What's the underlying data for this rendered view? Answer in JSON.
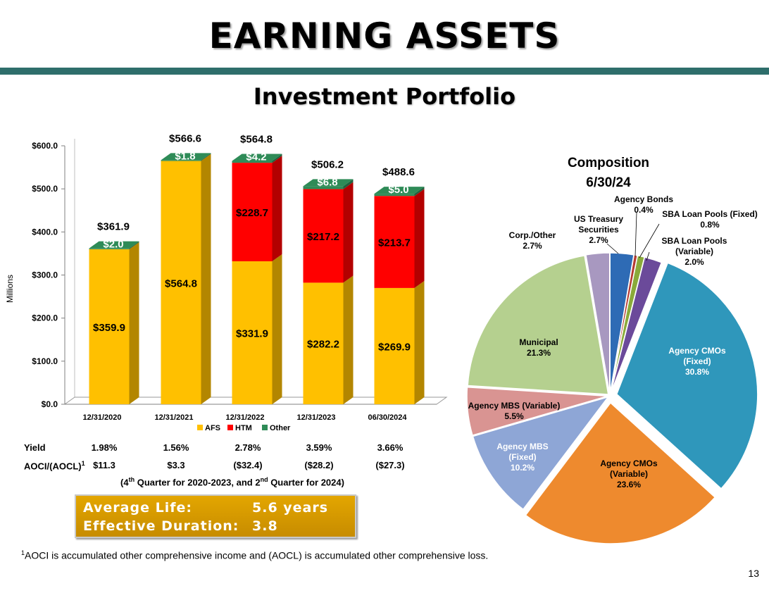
{
  "title": "EARNING ASSETS",
  "subtitle": "Investment Portfolio",
  "colors": {
    "afs": "#ffc000",
    "htm": "#ff0000",
    "other": "#2e8b57",
    "rule": "#2e6e6b"
  },
  "chart_data": [
    {
      "type": "bar",
      "stacked": true,
      "ylabel": "Millions",
      "ylim": [
        0,
        600
      ],
      "yticks": [
        "$0.0",
        "$100.0",
        "$200.0",
        "$300.0",
        "$400.0",
        "$500.0",
        "$600.0"
      ],
      "categories": [
        "12/31/2020",
        "12/31/2021",
        "12/31/2022",
        "12/31/2023",
        "06/30/2024"
      ],
      "series": [
        {
          "name": "AFS",
          "values": [
            359.9,
            564.8,
            331.9,
            282.2,
            269.9
          ],
          "labels": [
            "$359.9",
            "$564.8",
            "$331.9",
            "$282.2",
            "$269.9"
          ]
        },
        {
          "name": "HTM",
          "values": [
            0,
            0,
            228.7,
            217.2,
            213.7
          ],
          "labels": [
            "",
            "",
            "$228.7",
            "$217.2",
            "$213.7"
          ]
        },
        {
          "name": "Other",
          "values": [
            2.0,
            1.8,
            4.2,
            6.8,
            5.0
          ],
          "labels": [
            "$2.0",
            "$1.8",
            "$4.2",
            "$6.8",
            "$5.0"
          ]
        }
      ],
      "totals": [
        361.9,
        566.6,
        564.8,
        506.2,
        488.6
      ],
      "total_labels": [
        "$361.9",
        "$566.6",
        "$564.8",
        "$506.2",
        "$488.6"
      ],
      "legend": [
        "AFS",
        "HTM",
        "Other"
      ],
      "legend_position": "bottom"
    },
    {
      "type": "pie",
      "title": "Composition",
      "subtitle": "6/30/24",
      "slices": [
        {
          "label": "US Treasury Securities",
          "display": "US Treasury\nSecurities\n2.7%",
          "value": 2.7,
          "color": "#2e6bb5"
        },
        {
          "label": "Agency Bonds",
          "display": "Agency Bonds\n0.4%",
          "value": 0.4,
          "color": "#b53a32"
        },
        {
          "label": "SBA Loan Pools (Fixed)",
          "display": "SBA Loan Pools (Fixed)\n0.8%",
          "value": 0.8,
          "color": "#8aaa3a"
        },
        {
          "label": "SBA Loan Pools (Variable)",
          "display": "SBA Loan Pools\n(Variable)\n2.0%",
          "value": 2.0,
          "color": "#6b4a9a"
        },
        {
          "label": "Agency CMOs (Fixed)",
          "display": "Agency CMOs\n(Fixed)\n30.8%",
          "value": 30.8,
          "color": "#2f97bb"
        },
        {
          "label": "Agency CMOs (Variable)",
          "display": "Agency CMOs\n(Variable)\n23.6%",
          "value": 23.6,
          "color": "#ee8a2e"
        },
        {
          "label": "Agency MBS (Fixed)",
          "display": "Agency MBS\n(Fixed)\n10.2%",
          "value": 10.2,
          "color": "#8ea6d6"
        },
        {
          "label": "Agency MBS (Variable)",
          "display": "Agency MBS (Variable)\n5.5%",
          "value": 5.5,
          "color": "#d99492"
        },
        {
          "label": "Municipal",
          "display": "Municipal\n21.3%",
          "value": 21.3,
          "color": "#b5d08f"
        },
        {
          "label": "Corp./Other",
          "display": "Corp./Other\n2.7%",
          "value": 2.7,
          "color": "#a898c0"
        }
      ]
    }
  ],
  "stats": {
    "yield_label": "Yield",
    "yield": [
      "1.98%",
      "1.56%",
      "2.78%",
      "3.59%",
      "3.66%"
    ],
    "aoci_label": "AOCI/(AOCL)",
    "aoci_sup": "1",
    "aoci": [
      "$11.3",
      "$3.3",
      "($32.4)",
      "($28.2)",
      "($27.3)"
    ],
    "note_pre": "(4",
    "note_sup": "th",
    "note_post": " Quarter for 2020-2023, and 2",
    "note_sup2": "nd",
    "note_end": " Quarter for 2024)"
  },
  "summary_box": {
    "avg_life_label": "Average Life:",
    "avg_life_value": "5.6 years",
    "duration_label": "Effective Duration:",
    "duration_value": "3.8"
  },
  "footnote": {
    "sup": "1",
    "text": "AOCI is accumulated other comprehensive income and (AOCL) is accumulated other comprehensive loss."
  },
  "page_number": "13"
}
